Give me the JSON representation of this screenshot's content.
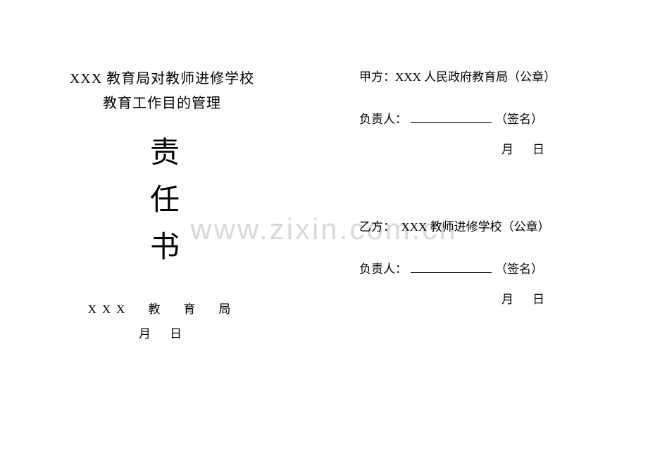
{
  "watermark": "www.zixin.com.cn",
  "left": {
    "title_line_1": "XXX 教育局对教师进修学校",
    "title_line_2": "教育工作目的管理",
    "vertical_title": "责任书",
    "issuer": "XXX　教　育　局",
    "issuer_date": "月　日"
  },
  "right": {
    "party_a": {
      "label": "甲方：XXX 人民政府教育局（公章）",
      "signer_prefix": "负责人：",
      "signer_suffix": "（签名）",
      "date": "月　日"
    },
    "party_b": {
      "label": "乙方：　XXX 教师进修学校（公章）",
      "signer_prefix": "负责人：",
      "signer_suffix": "（签名）",
      "date": "月　日"
    }
  },
  "colors": {
    "background": "#ffffff",
    "text": "#000000",
    "watermark": "#d9d9d9"
  },
  "typography": {
    "title_fontsize": 20,
    "vertical_title_fontsize": 42,
    "body_fontsize": 17,
    "watermark_fontsize": 42,
    "font_family": "SimSun"
  }
}
